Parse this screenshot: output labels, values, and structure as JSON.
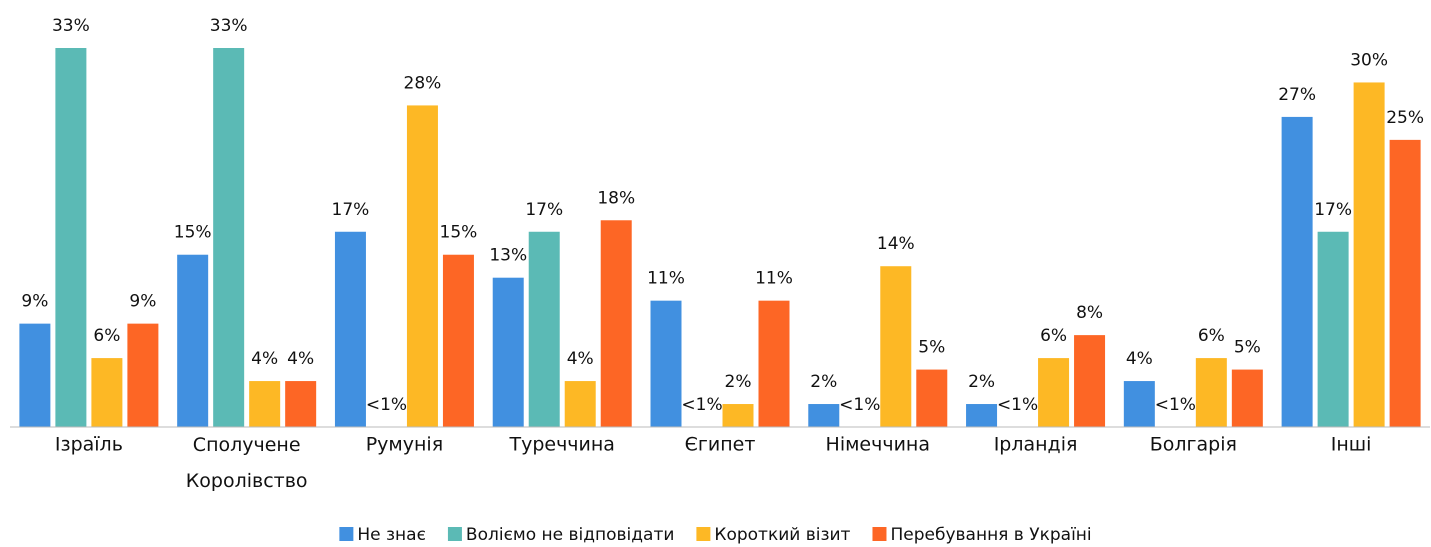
{
  "chart_data": {
    "type": "bar",
    "categories": [
      "Ізраїль",
      "Сполучене Королівство",
      "Румунія",
      "Туреччина",
      "Єгипет",
      "Німеччина",
      "Ірландія",
      "Болгарія",
      "Інші"
    ],
    "series": [
      {
        "name": "Не знає",
        "color": "#4190e0",
        "values": [
          9,
          15,
          17,
          13,
          11,
          2,
          2,
          4,
          27
        ],
        "value_labels": [
          "9%",
          "15%",
          "17%",
          "13%",
          "11%",
          "2%",
          "2%",
          "4%",
          "27%"
        ]
      },
      {
        "name": "Воліємо не відповідати",
        "color": "#5bbab5",
        "values": [
          33,
          33,
          0,
          17,
          0,
          0,
          0,
          0,
          17
        ],
        "value_labels": [
          "33%",
          "33%",
          "<1%",
          "17%",
          "<1%",
          "<1%",
          "<1%",
          "<1%",
          "17%"
        ]
      },
      {
        "name": "Короткий візит",
        "color": "#fdb825",
        "values": [
          6,
          4,
          28,
          4,
          2,
          14,
          6,
          6,
          30
        ],
        "value_labels": [
          "6%",
          "4%",
          "28%",
          "4%",
          "2%",
          "14%",
          "6%",
          "6%",
          "30%"
        ]
      },
      {
        "name": "Перебування в Україні",
        "color": "#fd6625",
        "values": [
          9,
          4,
          15,
          18,
          11,
          5,
          8,
          5,
          25
        ],
        "value_labels": [
          "9%",
          "4%",
          "15%",
          "18%",
          "11%",
          "5%",
          "8%",
          "5%",
          "25%"
        ]
      }
    ],
    "ylim": [
      0,
      33
    ],
    "legend": "bottom"
  }
}
